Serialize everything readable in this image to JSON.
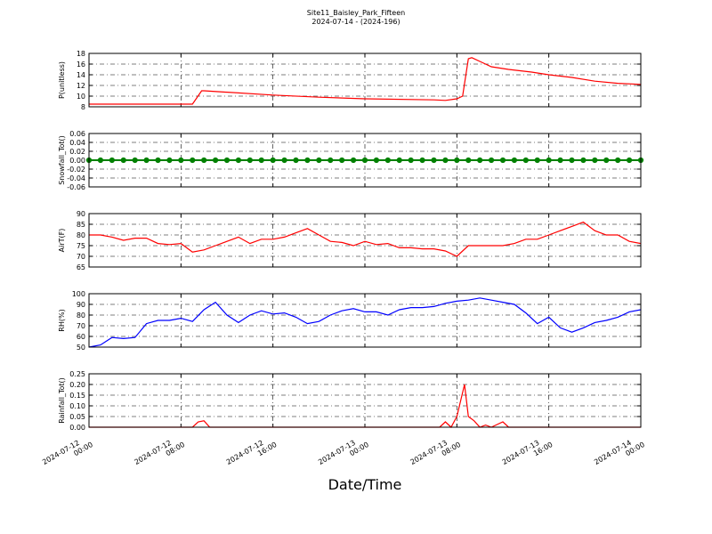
{
  "title": "Site11_Baisley_Park_Fifteen",
  "subtitle": "2024-07-14 - (2024-196)",
  "xlabel": "Date/Time",
  "xlim": [
    "2024-07-12 00:00",
    "2024-07-14 00:00"
  ],
  "xticks": [
    "2024-07-12 00:00",
    "2024-07-12 08:00",
    "2024-07-12 16:00",
    "2024-07-13 00:00",
    "2024-07-13 08:00",
    "2024-07-13 16:00",
    "2024-07-14 00:00"
  ],
  "chart_data": [
    {
      "type": "line",
      "ylabel": "P(unitless)",
      "color": "#ff0000",
      "grid": true,
      "ylim": [
        8,
        18
      ],
      "yticks": [
        8,
        10,
        12,
        14,
        16,
        18
      ],
      "x": [
        "2024-07-12 00:00",
        "2024-07-12 09:00",
        "2024-07-12 09:48",
        "2024-07-12 10:00",
        "2024-07-12 16:00",
        "2024-07-12 20:00",
        "2024-07-13 00:00",
        "2024-07-13 06:00",
        "2024-07-13 07:00",
        "2024-07-13 08:00",
        "2024-07-13 08:30",
        "2024-07-13 09:00",
        "2024-07-13 09:18",
        "2024-07-13 10:00",
        "2024-07-13 11:00",
        "2024-07-13 12:30",
        "2024-07-13 14:30",
        "2024-07-13 16:00",
        "2024-07-13 18:00",
        "2024-07-13 20:00",
        "2024-07-13 22:00",
        "2024-07-14 00:00"
      ],
      "values": [
        8.5,
        8.5,
        11,
        11,
        10.2,
        9.8,
        9.5,
        9.3,
        9.2,
        9.5,
        10,
        17,
        17.2,
        16.5,
        15.5,
        15,
        14.5,
        14,
        13.5,
        12.8,
        12.4,
        12.2
      ]
    },
    {
      "type": "scatter",
      "ylabel": "Snowfall_Tot()",
      "color": "#008000",
      "grid": true,
      "ylim": [
        -0.06,
        0.06
      ],
      "yticks": [
        -0.06,
        -0.04,
        -0.02,
        {
          "value": 0,
          "label": "0.00"
        },
        0.02,
        0.04,
        0.06
      ],
      "x": [
        "2024-07-12 00:00",
        "2024-07-12 01:00",
        "2024-07-12 02:00",
        "2024-07-12 03:00",
        "2024-07-12 04:00",
        "2024-07-12 05:00",
        "2024-07-12 06:00",
        "2024-07-12 07:00",
        "2024-07-12 08:00",
        "2024-07-12 09:00",
        "2024-07-12 10:00",
        "2024-07-12 11:00",
        "2024-07-12 12:00",
        "2024-07-12 13:00",
        "2024-07-12 14:00",
        "2024-07-12 15:00",
        "2024-07-12 16:00",
        "2024-07-12 17:00",
        "2024-07-12 18:00",
        "2024-07-12 19:00",
        "2024-07-12 20:00",
        "2024-07-12 21:00",
        "2024-07-12 22:00",
        "2024-07-12 23:00",
        "2024-07-13 00:00",
        "2024-07-13 01:00",
        "2024-07-13 02:00",
        "2024-07-13 03:00",
        "2024-07-13 04:00",
        "2024-07-13 05:00",
        "2024-07-13 06:00",
        "2024-07-13 07:00",
        "2024-07-13 08:00",
        "2024-07-13 09:00",
        "2024-07-13 10:00",
        "2024-07-13 11:00",
        "2024-07-13 12:00",
        "2024-07-13 13:00",
        "2024-07-13 14:00",
        "2024-07-13 15:00",
        "2024-07-13 16:00",
        "2024-07-13 17:00",
        "2024-07-13 18:00",
        "2024-07-13 19:00",
        "2024-07-13 20:00",
        "2024-07-13 21:00",
        "2024-07-13 22:00",
        "2024-07-13 23:00",
        "2024-07-14 00:00"
      ],
      "values": [
        0,
        0,
        0,
        0,
        0,
        0,
        0,
        0,
        0,
        0,
        0,
        0,
        0,
        0,
        0,
        0,
        0,
        0,
        0,
        0,
        0,
        0,
        0,
        0,
        0,
        0,
        0,
        0,
        0,
        0,
        0,
        0,
        0,
        0,
        0,
        0,
        0,
        0,
        0,
        0,
        0,
        0,
        0,
        0,
        0,
        0,
        0,
        0,
        0
      ]
    },
    {
      "type": "line",
      "ylabel": "AirT(F)",
      "color": "#ff0000",
      "grid": true,
      "ylim": [
        65,
        90
      ],
      "yticks": [
        65,
        70,
        75,
        80,
        85,
        90
      ],
      "x": [
        "2024-07-12 00:00",
        "2024-07-12 01:00",
        "2024-07-12 02:00",
        "2024-07-12 03:00",
        "2024-07-12 04:00",
        "2024-07-12 05:00",
        "2024-07-12 06:00",
        "2024-07-12 07:00",
        "2024-07-12 08:00",
        "2024-07-12 09:00",
        "2024-07-12 10:00",
        "2024-07-12 11:00",
        "2024-07-12 12:00",
        "2024-07-12 13:00",
        "2024-07-12 14:00",
        "2024-07-12 15:00",
        "2024-07-12 16:00",
        "2024-07-12 17:00",
        "2024-07-12 18:00",
        "2024-07-12 19:00",
        "2024-07-12 20:00",
        "2024-07-12 21:00",
        "2024-07-12 22:00",
        "2024-07-12 23:00",
        "2024-07-13 00:00",
        "2024-07-13 01:00",
        "2024-07-13 02:00",
        "2024-07-13 03:00",
        "2024-07-13 04:00",
        "2024-07-13 05:00",
        "2024-07-13 06:00",
        "2024-07-13 07:00",
        "2024-07-13 08:00",
        "2024-07-13 09:00",
        "2024-07-13 10:00",
        "2024-07-13 11:00",
        "2024-07-13 12:00",
        "2024-07-13 13:00",
        "2024-07-13 14:00",
        "2024-07-13 15:00",
        "2024-07-13 16:00",
        "2024-07-13 17:00",
        "2024-07-13 18:00",
        "2024-07-13 19:00",
        "2024-07-13 20:00",
        "2024-07-13 21:00",
        "2024-07-13 22:00",
        "2024-07-13 23:00",
        "2024-07-14 00:00"
      ],
      "values": [
        80,
        80,
        79,
        77.5,
        78.5,
        78.5,
        76,
        75.5,
        76,
        72,
        73,
        75,
        77,
        79,
        76,
        78,
        78,
        79,
        81,
        83,
        80,
        77,
        76.5,
        75,
        77,
        75.5,
        76,
        74,
        74,
        73.5,
        73.5,
        72.5,
        70,
        75,
        75,
        75,
        75,
        76,
        78,
        78,
        80,
        82,
        84,
        86,
        82,
        80,
        80,
        77,
        76
      ]
    },
    {
      "type": "line",
      "ylabel": "RH(%)",
      "color": "#0000ff",
      "grid": true,
      "ylim": [
        50,
        100
      ],
      "yticks": [
        50,
        60,
        70,
        80,
        90,
        100
      ],
      "x": [
        "2024-07-12 00:00",
        "2024-07-12 01:00",
        "2024-07-12 02:00",
        "2024-07-12 03:00",
        "2024-07-12 04:00",
        "2024-07-12 05:00",
        "2024-07-12 06:00",
        "2024-07-12 07:00",
        "2024-07-12 08:00",
        "2024-07-12 09:00",
        "2024-07-12 10:00",
        "2024-07-12 11:00",
        "2024-07-12 12:00",
        "2024-07-12 13:00",
        "2024-07-12 14:00",
        "2024-07-12 15:00",
        "2024-07-12 16:00",
        "2024-07-12 17:00",
        "2024-07-12 18:00",
        "2024-07-12 19:00",
        "2024-07-12 20:00",
        "2024-07-12 21:00",
        "2024-07-12 22:00",
        "2024-07-12 23:00",
        "2024-07-13 00:00",
        "2024-07-13 01:00",
        "2024-07-13 02:00",
        "2024-07-13 03:00",
        "2024-07-13 04:00",
        "2024-07-13 05:00",
        "2024-07-13 06:00",
        "2024-07-13 07:00",
        "2024-07-13 08:00",
        "2024-07-13 09:00",
        "2024-07-13 10:00",
        "2024-07-13 11:00",
        "2024-07-13 12:00",
        "2024-07-13 13:00",
        "2024-07-13 14:00",
        "2024-07-13 15:00",
        "2024-07-13 16:00",
        "2024-07-13 17:00",
        "2024-07-13 18:00",
        "2024-07-13 19:00",
        "2024-07-13 20:00",
        "2024-07-13 21:00",
        "2024-07-13 22:00",
        "2024-07-13 23:00",
        "2024-07-14 00:00"
      ],
      "values": [
        50,
        52,
        59,
        58,
        59,
        72,
        75,
        75,
        77,
        74,
        85,
        92,
        80,
        73,
        80,
        84,
        81,
        82,
        78,
        72,
        74,
        80,
        84,
        86,
        83,
        83,
        80,
        85,
        87,
        87,
        88,
        91,
        93,
        94,
        96,
        94,
        92,
        90,
        82,
        72,
        78,
        68,
        64,
        68,
        73,
        75,
        78,
        83,
        85
      ]
    },
    {
      "type": "line",
      "ylabel": "Rainfall_Tot()",
      "color": "#ff0000",
      "grid": true,
      "ylim": [
        0,
        0.25
      ],
      "yticks": [
        {
          "value": 0,
          "label": "0.00"
        },
        0.05,
        {
          "value": 0.1,
          "label": "0.10"
        },
        0.15,
        {
          "value": 0.2,
          "label": "0.20"
        },
        0.25
      ],
      "x": [
        "2024-07-12 00:00",
        "2024-07-12 09:00",
        "2024-07-12 09:30",
        "2024-07-12 10:00",
        "2024-07-12 10:30",
        "2024-07-13 06:30",
        "2024-07-13 07:00",
        "2024-07-13 07:30",
        "2024-07-13 08:00",
        "2024-07-13 08:40",
        "2024-07-13 09:00",
        "2024-07-13 09:30",
        "2024-07-13 10:00",
        "2024-07-13 10:30",
        "2024-07-13 11:00",
        "2024-07-13 12:00",
        "2024-07-13 12:30",
        "2024-07-14 00:00"
      ],
      "values": [
        0,
        0,
        0.025,
        0.03,
        0,
        0,
        0.025,
        0,
        0.05,
        0.2,
        0.05,
        0.03,
        0,
        0.01,
        0,
        0.025,
        0,
        0
      ]
    }
  ]
}
